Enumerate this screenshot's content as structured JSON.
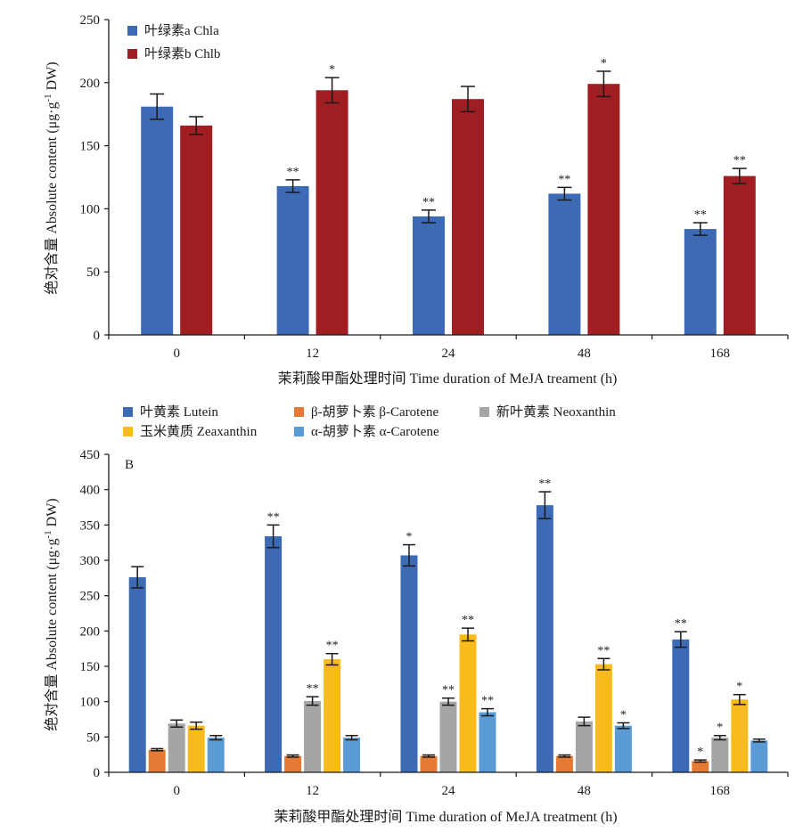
{
  "chart_data": [
    {
      "type": "bar",
      "panel_label": "",
      "xlabel": "茉莉酸甲酯处理时间 Time duration of MeJA treament (h)",
      "ylabel": "绝对含量 Absolute content (μg·g-1 DW)",
      "ylim": [
        0,
        250
      ],
      "yticks": [
        "0",
        "50",
        "100",
        "150",
        "200",
        "250"
      ],
      "categories": [
        "0",
        "12",
        "24",
        "48",
        "168"
      ],
      "legend_position": "top-left",
      "grid": false,
      "series": [
        {
          "name": "叶绿素a Chla",
          "color": "#3d6ab4",
          "values": [
            181,
            118,
            94,
            112,
            84
          ],
          "errors": [
            10,
            5,
            5,
            5,
            5
          ],
          "sig": [
            "",
            "**",
            "**",
            "**",
            "**"
          ]
        },
        {
          "name": "叶绿素b Chlb",
          "color": "#a01d21",
          "values": [
            166,
            194,
            187,
            199,
            126
          ],
          "errors": [
            7,
            10,
            10,
            10,
            6
          ],
          "sig": [
            "",
            "*",
            "",
            "*",
            "**"
          ]
        }
      ]
    },
    {
      "type": "bar",
      "panel_label": "B",
      "xlabel": "茉莉酸甲酯处理时间 Time duration of MeJA treatment (h)",
      "ylabel": "绝对含量 Absolute content (μg·g-1 DW)",
      "ylim": [
        0,
        450
      ],
      "yticks": [
        "0",
        "50",
        "100",
        "150",
        "200",
        "250",
        "300",
        "350",
        "400",
        "450"
      ],
      "categories": [
        "0",
        "12",
        "24",
        "48",
        "168"
      ],
      "legend_position": "above-plot",
      "grid": false,
      "series": [
        {
          "name": "叶黄素 Lutein",
          "color": "#3d6ab4",
          "values": [
            276,
            334,
            307,
            378,
            188
          ],
          "errors": [
            15,
            16,
            15,
            19,
            11
          ],
          "sig": [
            "",
            "**",
            "*",
            "**",
            "**"
          ]
        },
        {
          "name": "β-胡萝卜素 β-Carotene",
          "color": "#e47a35",
          "values": [
            32,
            23,
            23,
            23,
            16
          ],
          "errors": [
            1.5,
            1.5,
            1.5,
            1.5,
            1.5
          ],
          "sig": [
            "",
            "",
            "",
            "",
            "*"
          ]
        },
        {
          "name": "新叶黄素 Neoxanthin",
          "color": "#a5a5a5",
          "values": [
            69,
            101,
            100,
            72,
            49
          ],
          "errors": [
            5,
            6,
            5,
            6,
            3
          ],
          "sig": [
            "",
            "**",
            "**",
            "",
            "*"
          ]
        },
        {
          "name": "玉米黄质 Zeaxanthin",
          "color": "#f7bb1e",
          "values": [
            66,
            160,
            195,
            153,
            103
          ],
          "errors": [
            5,
            8,
            9,
            8,
            7
          ],
          "sig": [
            "",
            "**",
            "**",
            "**",
            "*"
          ]
        },
        {
          "name": "α-胡萝卜素 α-Carotene",
          "color": "#5b9bd5",
          "values": [
            49,
            49,
            85,
            66,
            45
          ],
          "errors": [
            3,
            3,
            5,
            4,
            2
          ],
          "sig": [
            "",
            "",
            "**",
            "*",
            ""
          ]
        }
      ]
    }
  ]
}
